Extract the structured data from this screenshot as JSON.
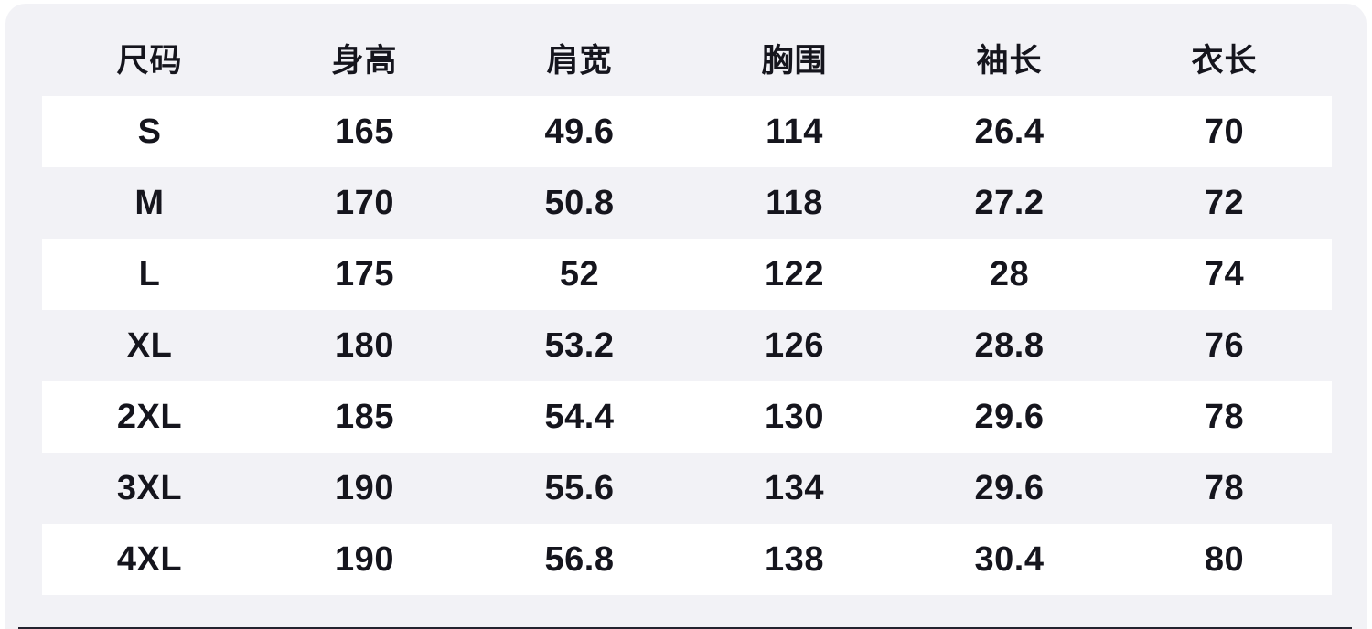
{
  "page": {
    "background_color": "#ffffff",
    "panel_color": "#f2f2f6",
    "stripe_color": "#ffffff",
    "text_color": "#15151d",
    "bottom_edge_color": "#23232f"
  },
  "size_chart": {
    "columns": [
      "尺码",
      "身高",
      "肩宽",
      "胸围",
      "袖长",
      "衣长"
    ],
    "rows": [
      [
        "S",
        "165",
        "49.6",
        "114",
        "26.4",
        "70"
      ],
      [
        "M",
        "170",
        "50.8",
        "118",
        "27.2",
        "72"
      ],
      [
        "L",
        "175",
        "52",
        "122",
        "28",
        "74"
      ],
      [
        "XL",
        "180",
        "53.2",
        "126",
        "28.8",
        "76"
      ],
      [
        "2XL",
        "185",
        "54.4",
        "130",
        "29.6",
        "78"
      ],
      [
        "3XL",
        "190",
        "55.6",
        "134",
        "29.6",
        "78"
      ],
      [
        "4XL",
        "190",
        "56.8",
        "138",
        "30.4",
        "80"
      ]
    ]
  }
}
